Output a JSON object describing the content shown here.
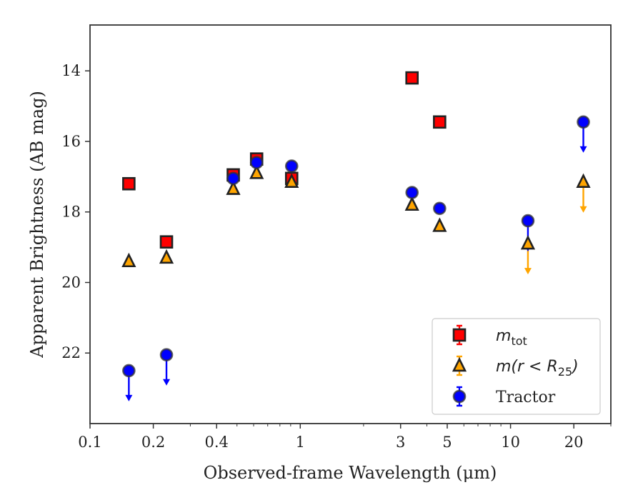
{
  "chart_data": {
    "type": "scatter",
    "xlabel": "Observed-frame Wavelength (μm)",
    "ylabel": "Apparent Brightness (AB mag)",
    "xscale": "log",
    "xlim": [
      0.1,
      30
    ],
    "ylim": [
      24,
      12.7
    ],
    "y_inverted": true,
    "x_ticks": [
      0.1,
      0.2,
      0.4,
      1,
      3,
      5,
      10,
      20
    ],
    "x_tick_labels": [
      "0.1",
      "0.2",
      "0.4",
      "1",
      "3",
      "5",
      "10",
      "20"
    ],
    "y_ticks": [
      14,
      16,
      18,
      20,
      22
    ],
    "y_tick_labels": [
      "14",
      "16",
      "18",
      "20",
      "22"
    ],
    "legend_position": "lower-right",
    "series": [
      {
        "name_base": "m",
        "name_sub": "tot",
        "marker": "square",
        "color": "#ff0000",
        "points": [
          {
            "x": 0.153,
            "y": 17.2
          },
          {
            "x": 0.231,
            "y": 18.85
          },
          {
            "x": 0.48,
            "y": 16.95
          },
          {
            "x": 0.62,
            "y": 16.5
          },
          {
            "x": 0.91,
            "y": 17.05
          },
          {
            "x": 3.4,
            "y": 14.2
          },
          {
            "x": 4.6,
            "y": 15.45
          }
        ]
      },
      {
        "name_base": "m(r < R",
        "name_sub": "25",
        "name_tail": ")",
        "marker": "triangle",
        "color": "#ffa500",
        "points": [
          {
            "x": 0.153,
            "y": 19.4,
            "err": 0.15
          },
          {
            "x": 0.231,
            "y": 19.3
          },
          {
            "x": 0.48,
            "y": 17.35
          },
          {
            "x": 0.62,
            "y": 16.9
          },
          {
            "x": 0.91,
            "y": 17.15
          },
          {
            "x": 3.4,
            "y": 17.8
          },
          {
            "x": 4.6,
            "y": 18.4
          },
          {
            "x": 12.1,
            "y": 18.9,
            "upper_limit": true
          },
          {
            "x": 22.2,
            "y": 17.15,
            "upper_limit": true
          }
        ]
      },
      {
        "name": "Tractor",
        "marker": "circle",
        "color": "#0000ff",
        "points": [
          {
            "x": 0.153,
            "y": 22.5,
            "upper_limit": true
          },
          {
            "x": 0.231,
            "y": 22.05,
            "upper_limit": true
          },
          {
            "x": 0.48,
            "y": 17.05
          },
          {
            "x": 0.62,
            "y": 16.6
          },
          {
            "x": 0.91,
            "y": 16.7
          },
          {
            "x": 3.4,
            "y": 17.45
          },
          {
            "x": 4.6,
            "y": 17.9
          },
          {
            "x": 12.1,
            "y": 18.25,
            "upper_limit": true
          },
          {
            "x": 22.2,
            "y": 15.45,
            "upper_limit": true
          }
        ]
      }
    ]
  }
}
